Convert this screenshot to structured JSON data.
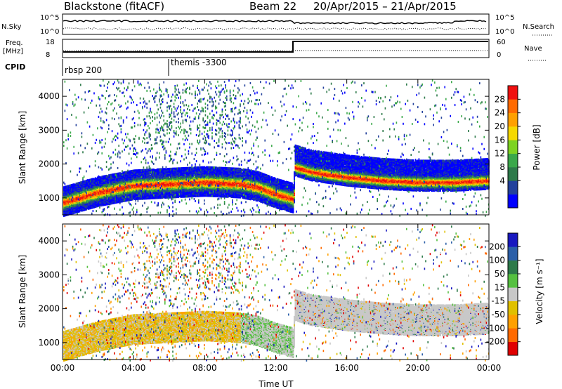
{
  "header": {
    "station": "Blackstone (fitACF)",
    "beam": "Beam 22",
    "dates": "20/Apr/2015 – 21/Apr/2015"
  },
  "top_panels": {
    "nsky_label": "N.Sky",
    "nsearch_label": "N.Search",
    "nsky_ticks": [
      "10^5",
      "10^0"
    ],
    "nsearch_ticks": [
      "10^5",
      "10^0"
    ],
    "freq_label_top": "Freq.",
    "freq_label_bottom": "[MHz]",
    "freq_ticks": [
      "18",
      "8"
    ],
    "nave_label": "Nave",
    "nave_ticks": [
      "60",
      "0"
    ],
    "cpid_label": "CPID",
    "cpid_segments": [
      "rbsp 200",
      "themis -3300"
    ]
  },
  "power_colorbar": {
    "label": "Power [dB]",
    "ticks": [
      "28",
      "24",
      "20",
      "16",
      "12",
      "8",
      "4"
    ],
    "colors": [
      "#0000ff",
      "#23419c",
      "#2d7a4a",
      "#3aa84a",
      "#7dd321",
      "#f5d800",
      "#ffa000",
      "#ff6a00",
      "#f01010"
    ]
  },
  "velocity_colorbar": {
    "label": "Velocity [m s⁻¹]",
    "ticks": [
      "200",
      "100",
      "50",
      "15",
      "-15",
      "-50",
      "-100",
      "-200"
    ],
    "colors": [
      "#1818c0",
      "#2b5fa8",
      "#2d7a4a",
      "#55c040",
      "#c8c8c8",
      "#e0c000",
      "#ffa000",
      "#ff6a00",
      "#e00000"
    ]
  },
  "x_axis": {
    "label": "Time UT",
    "ticks": [
      "00:00",
      "04:00",
      "08:00",
      "12:00",
      "16:00",
      "20:00",
      "00:00"
    ]
  },
  "chart_data": [
    {
      "type": "heatmap",
      "name": "Power",
      "ylabel": "Slant Range [km]",
      "y_ticks": [
        "1000",
        "2000",
        "3000",
        "4000"
      ],
      "ylim": [
        500,
        4500
      ],
      "xlim_hours": [
        0,
        24
      ],
      "zlim_db": [
        0,
        32
      ],
      "ridge_center_km": [
        [
          0,
          900
        ],
        [
          2,
          1200
        ],
        [
          4,
          1400
        ],
        [
          6,
          1450
        ],
        [
          8,
          1500
        ],
        [
          10,
          1450
        ],
        [
          11,
          1350
        ],
        [
          12,
          1150
        ],
        [
          13,
          1000
        ],
        [
          13.05,
          1950
        ],
        [
          14,
          1800
        ],
        [
          16,
          1650
        ],
        [
          18,
          1550
        ],
        [
          20,
          1500
        ],
        [
          22,
          1500
        ],
        [
          24,
          1550
        ]
      ]
    },
    {
      "type": "heatmap",
      "name": "Velocity",
      "ylabel": "Slant Range [km]",
      "y_ticks": [
        "1000",
        "2000",
        "3000",
        "4000"
      ],
      "ylim": [
        500,
        4500
      ],
      "xlim_hours": [
        0,
        24
      ],
      "zlim_ms": [
        -250,
        250
      ]
    }
  ]
}
